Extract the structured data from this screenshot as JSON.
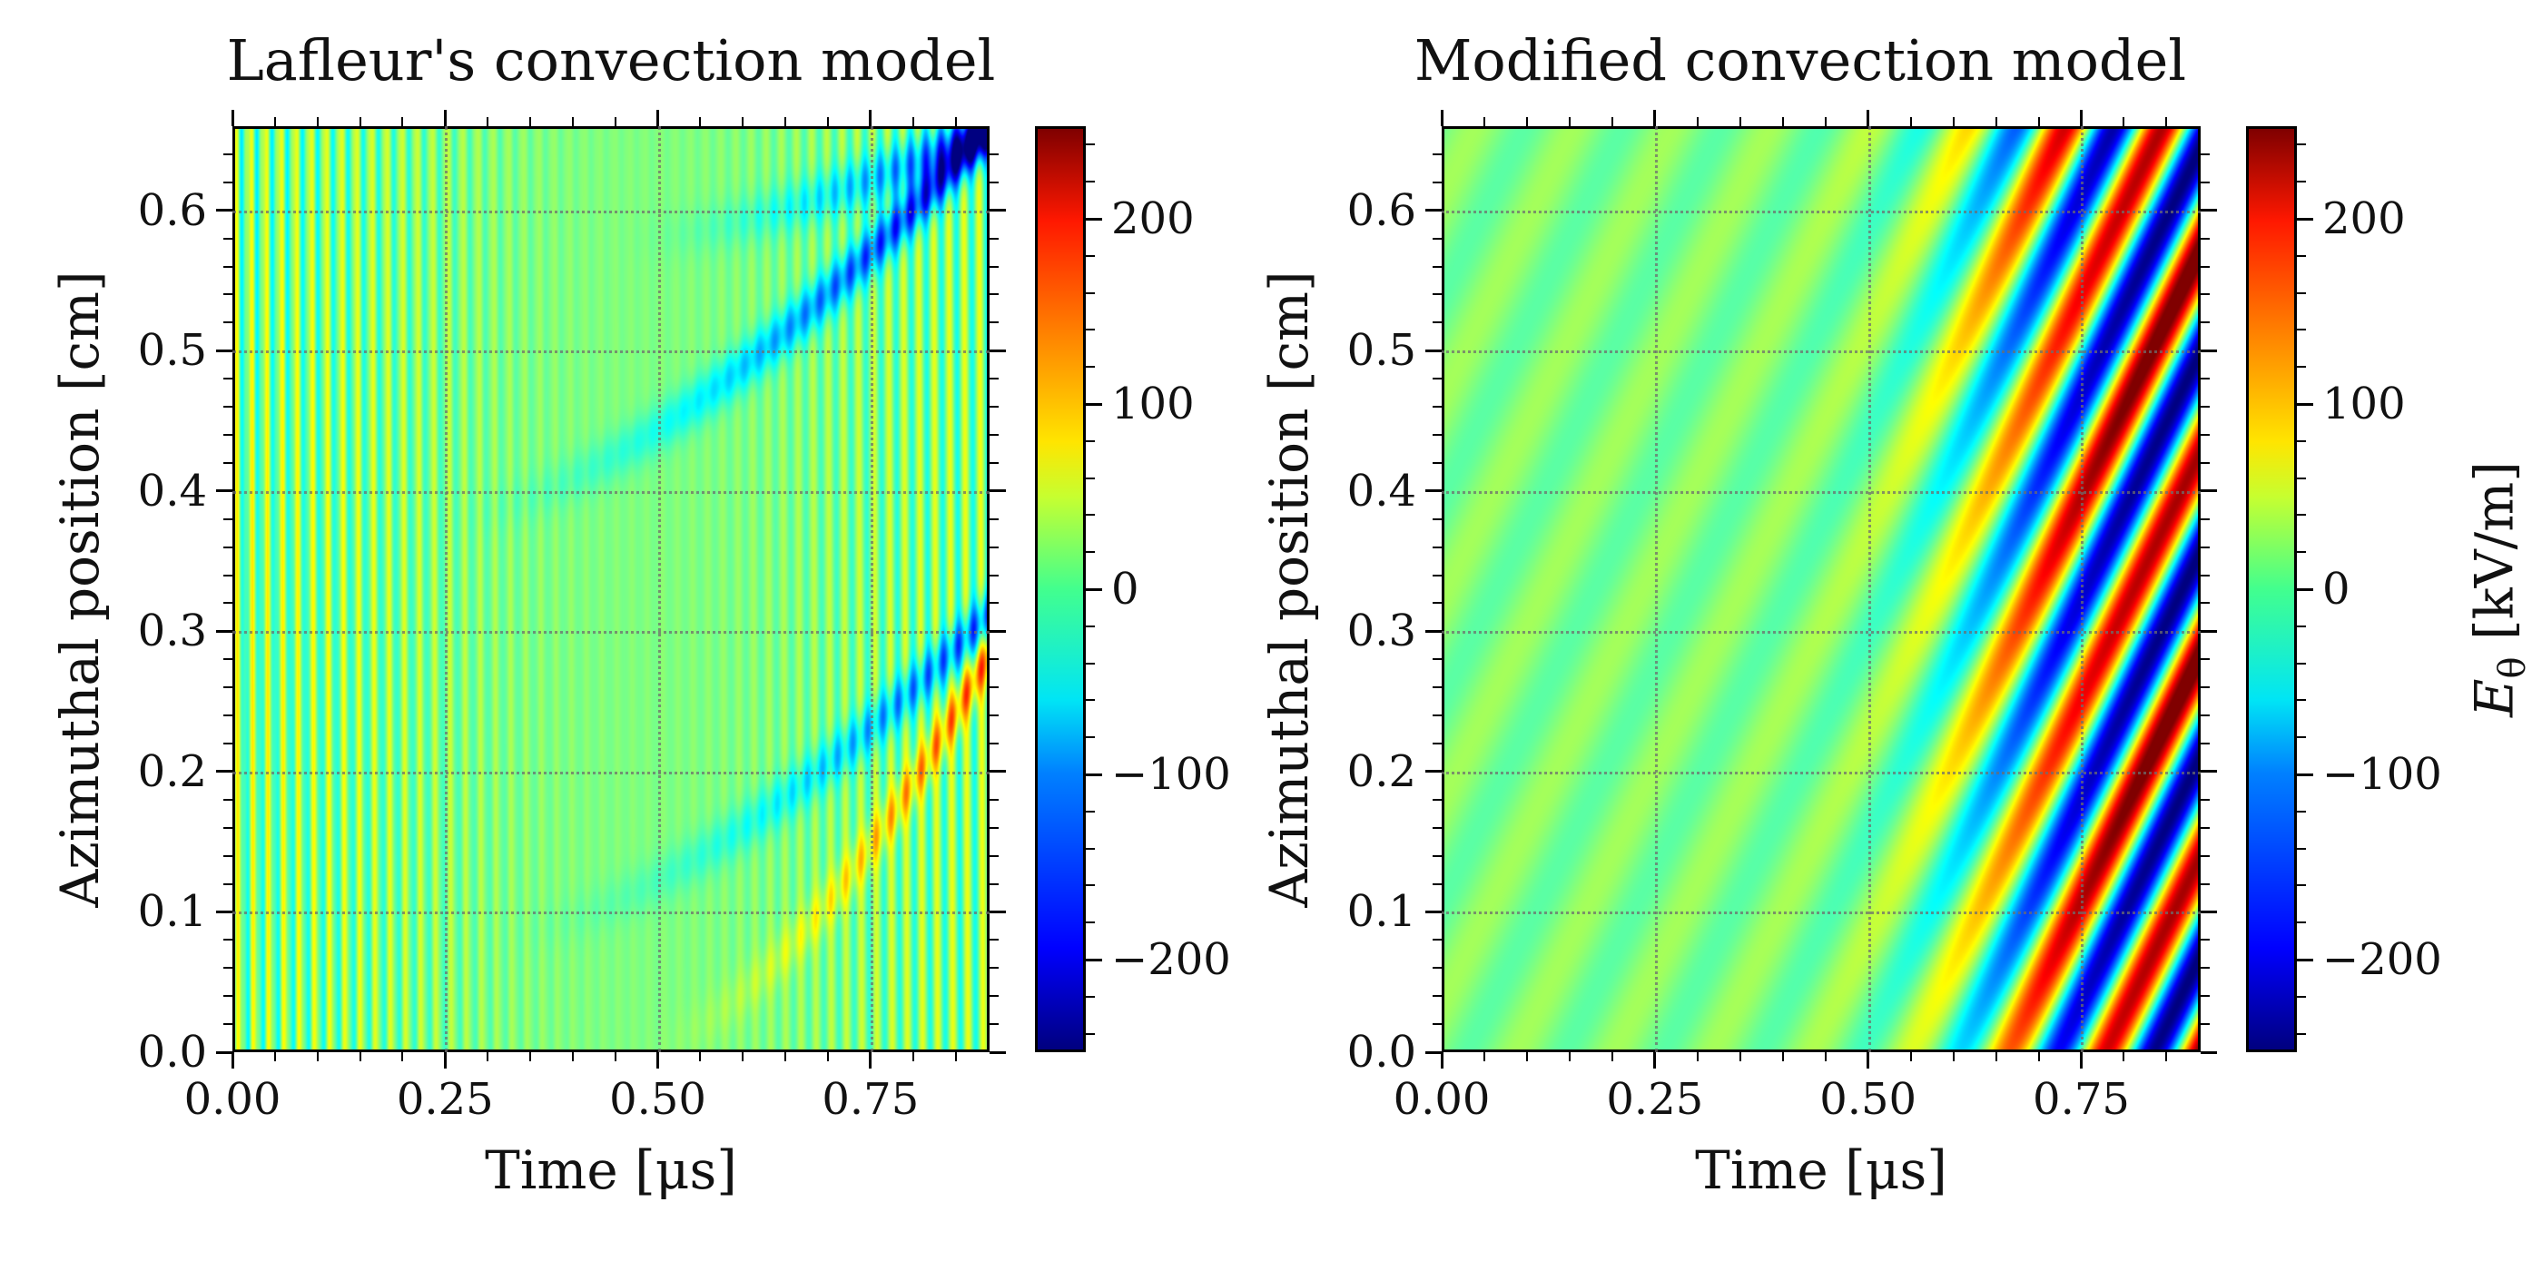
{
  "chart_data": [
    {
      "type": "heatmap",
      "title": "Lafleur's convection model",
      "xlabel": "Time [μs]",
      "ylabel": "Azimuthal position [cm]",
      "xlim": [
        0.0,
        0.89
      ],
      "ylim": [
        0.0,
        0.66
      ],
      "xticks": [
        "0.00",
        "0.25",
        "0.50",
        "0.75"
      ],
      "yticks": [
        "0.0",
        "0.1",
        "0.2",
        "0.3",
        "0.4",
        "0.5",
        "0.6"
      ],
      "grid": true,
      "colormap": "jet",
      "colorbar": {
        "range": [
          -250,
          250
        ],
        "ticks": [
          "−200",
          "−100",
          "0",
          "100",
          "200"
        ],
        "label": ""
      },
      "features": {
        "vertical_striations_period_us": 0.018,
        "striation_amplitude_kVm": 55,
        "wavefronts": [
          {
            "t_start_us": 0.24,
            "theta_start_cm": 0.38,
            "t_end_us": 0.89,
            "theta_end_cm": 0.66,
            "peak_kVm": -200
          },
          {
            "t_start_us": 0.45,
            "theta_start_cm": 0.58,
            "t_end_us": 0.89,
            "theta_end_cm": 0.66,
            "peak_kVm": -150
          },
          {
            "t_start_us": 0.3,
            "theta_start_cm": 0.08,
            "t_end_us": 0.89,
            "theta_end_cm": 0.31,
            "peak_kVm": -130
          },
          {
            "t_start_us": 0.48,
            "theta_start_cm": 0.0,
            "t_end_us": 0.89,
            "theta_end_cm": 0.28,
            "peak_kVm": 130
          }
        ]
      }
    },
    {
      "type": "heatmap",
      "title": "Modified convection model",
      "xlabel": "Time [μs]",
      "ylabel": "Azimuthal position [cm]",
      "xlim": [
        0.0,
        0.89
      ],
      "ylim": [
        0.0,
        0.66
      ],
      "xticks": [
        "0.00",
        "0.25",
        "0.50",
        "0.75"
      ],
      "yticks": [
        "0.0",
        "0.1",
        "0.2",
        "0.3",
        "0.4",
        "0.5",
        "0.6"
      ],
      "grid": true,
      "colormap": "jet",
      "colorbar": {
        "range": [
          -250,
          250
        ],
        "ticks": [
          "−200",
          "−100",
          "0",
          "100",
          "200"
        ],
        "label": "E_θ [kV/m]"
      },
      "features": {
        "diagonal_wave_slope_cm_per_us": 1.25,
        "wavelength_cm": 0.145,
        "peak_amplitude_kVm": 240,
        "growth_onset_us": 0.5
      }
    }
  ]
}
